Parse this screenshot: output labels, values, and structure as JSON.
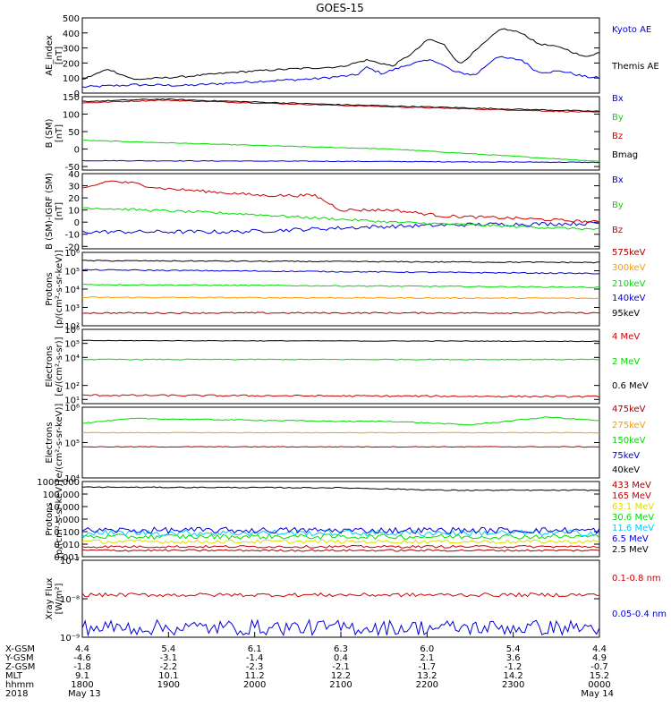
{
  "title": "GOES-15",
  "colors": {
    "black": "#000000",
    "blue": "#0000dd",
    "green": "#00dd00",
    "red": "#cc0000",
    "orange": "#ff9900",
    "cyan": "#00ccff",
    "yellow": "#dddd00",
    "darkred": "#aa0000",
    "axis": "#000000"
  },
  "chart_data": [
    {
      "type": "line",
      "id": "ae",
      "ylabel": [
        "AE_index",
        "[nT]"
      ],
      "ylim": [
        0,
        500
      ],
      "yscale": "linear",
      "ticks": [
        {
          "v": 0,
          "l": "0"
        },
        {
          "v": 100,
          "l": "100"
        },
        {
          "v": 200,
          "l": "200"
        },
        {
          "v": 300,
          "l": "300"
        },
        {
          "v": 400,
          "l": "400"
        },
        {
          "v": 500,
          "l": "500"
        }
      ],
      "series": [
        {
          "name": "Kyoto AE",
          "color": "blue",
          "noise": 8,
          "knots": [
            [
              0,
              40
            ],
            [
              0.1,
              55
            ],
            [
              0.2,
              50
            ],
            [
              0.35,
              80
            ],
            [
              0.45,
              95
            ],
            [
              0.53,
              120
            ],
            [
              0.55,
              170
            ],
            [
              0.58,
              130
            ],
            [
              0.64,
              200
            ],
            [
              0.68,
              220
            ],
            [
              0.72,
              140
            ],
            [
              0.76,
              120
            ],
            [
              0.8,
              240
            ],
            [
              0.85,
              220
            ],
            [
              0.88,
              140
            ],
            [
              0.93,
              145
            ],
            [
              0.97,
              110
            ],
            [
              1,
              100
            ]
          ]
        },
        {
          "name": "Themis AE",
          "color": "black",
          "noise": 6,
          "knots": [
            [
              0,
              90
            ],
            [
              0.05,
              160
            ],
            [
              0.1,
              90
            ],
            [
              0.2,
              110
            ],
            [
              0.3,
              140
            ],
            [
              0.4,
              160
            ],
            [
              0.5,
              175
            ],
            [
              0.55,
              220
            ],
            [
              0.6,
              180
            ],
            [
              0.64,
              270
            ],
            [
              0.67,
              360
            ],
            [
              0.7,
              320
            ],
            [
              0.73,
              190
            ],
            [
              0.78,
              340
            ],
            [
              0.81,
              430
            ],
            [
              0.85,
              400
            ],
            [
              0.88,
              330
            ],
            [
              0.93,
              300
            ],
            [
              0.97,
              240
            ],
            [
              1,
              270
            ]
          ]
        }
      ]
    },
    {
      "type": "line",
      "id": "bsm",
      "ylabel": [
        "B (SM)",
        "[nT]"
      ],
      "ylim": [
        -60,
        150
      ],
      "yscale": "linear",
      "ticks": [
        {
          "v": -50,
          "l": "-50"
        },
        {
          "v": 0,
          "l": "0"
        },
        {
          "v": 50,
          "l": "50"
        },
        {
          "v": 100,
          "l": "100"
        },
        {
          "v": 150,
          "l": "150"
        }
      ],
      "series": [
        {
          "name": "Bx",
          "color": "blue",
          "noise": 1,
          "knots": [
            [
              0,
              -33
            ],
            [
              0.5,
              -35
            ],
            [
              1,
              -38
            ]
          ]
        },
        {
          "name": "By",
          "color": "green",
          "noise": 1,
          "knots": [
            [
              0,
              25
            ],
            [
              0.3,
              12
            ],
            [
              0.6,
              0
            ],
            [
              1,
              -35
            ]
          ]
        },
        {
          "name": "Bz",
          "color": "red",
          "noise": 1.5,
          "knots": [
            [
              0,
              132
            ],
            [
              0.15,
              140
            ],
            [
              0.5,
              125
            ],
            [
              1,
              105
            ]
          ]
        },
        {
          "name": "Bmag",
          "color": "black",
          "noise": 1.5,
          "knots": [
            [
              0,
              136
            ],
            [
              0.15,
              143
            ],
            [
              0.5,
              127
            ],
            [
              1,
              108
            ]
          ]
        }
      ]
    },
    {
      "type": "line",
      "id": "bigrf",
      "ylabel": [
        "B (SM)-IGRF (SM)",
        "[nT]"
      ],
      "ylim": [
        -22,
        40
      ],
      "yscale": "linear",
      "ticks": [
        {
          "v": -20,
          "l": "-20"
        },
        {
          "v": -10,
          "l": "-10"
        },
        {
          "v": 0,
          "l": "0"
        },
        {
          "v": 10,
          "l": "10"
        },
        {
          "v": 20,
          "l": "20"
        },
        {
          "v": 30,
          "l": "30"
        },
        {
          "v": 40,
          "l": "40"
        }
      ],
      "series": [
        {
          "name": "Bx",
          "color": "blue",
          "noise": 1.6,
          "knots": [
            [
              0,
              -8
            ],
            [
              0.3,
              -8
            ],
            [
              0.55,
              -4
            ],
            [
              0.75,
              -2
            ],
            [
              1,
              -1
            ]
          ]
        },
        {
          "name": "By",
          "color": "green",
          "noise": 1,
          "knots": [
            [
              0,
              12
            ],
            [
              0.3,
              7
            ],
            [
              0.6,
              0
            ],
            [
              1,
              -6
            ]
          ]
        },
        {
          "name": "Bz",
          "color": "red",
          "noise": 1.2,
          "knots": [
            [
              0,
              27
            ],
            [
              0.05,
              34
            ],
            [
              0.1,
              32
            ],
            [
              0.15,
              28
            ],
            [
              0.25,
              25
            ],
            [
              0.35,
              22
            ],
            [
              0.45,
              22
            ],
            [
              0.5,
              10
            ],
            [
              0.6,
              10
            ],
            [
              0.7,
              5
            ],
            [
              0.85,
              3
            ],
            [
              1,
              0
            ]
          ]
        }
      ]
    },
    {
      "type": "line",
      "id": "protons",
      "ylabel": [
        "Protons",
        "[p/(cm²-s-sr-keV)]"
      ],
      "ylim": [
        2,
        6
      ],
      "yscale": "log",
      "ticks": [
        {
          "v": 2,
          "l": "10²"
        },
        {
          "v": 3,
          "l": "10³"
        },
        {
          "v": 4,
          "l": "10⁴"
        },
        {
          "v": 5,
          "l": "10⁵"
        },
        {
          "v": 6,
          "l": "10⁶"
        }
      ],
      "series": [
        {
          "name": "575keV",
          "color": "darkred",
          "noise": 0.04,
          "knots": [
            [
              0,
              2.7
            ],
            [
              1,
              2.7
            ]
          ]
        },
        {
          "name": "300keV",
          "color": "orange",
          "noise": 0.03,
          "knots": [
            [
              0,
              3.55
            ],
            [
              1,
              3.5
            ]
          ]
        },
        {
          "name": "210keV",
          "color": "green",
          "noise": 0.03,
          "knots": [
            [
              0,
              4.25
            ],
            [
              1,
              4.1
            ]
          ]
        },
        {
          "name": "140keV",
          "color": "blue",
          "noise": 0.03,
          "knots": [
            [
              0,
              5.05
            ],
            [
              1,
              4.85
            ]
          ]
        },
        {
          "name": "95keV",
          "color": "black",
          "noise": 0.03,
          "knots": [
            [
              0,
              5.55
            ],
            [
              1,
              5.45
            ]
          ]
        }
      ]
    },
    {
      "type": "line",
      "id": "electrons1",
      "ylabel": [
        "Electrons",
        "[e/(cm²-s-sr)]"
      ],
      "ylim": [
        0.7,
        6
      ],
      "yscale": "log",
      "ticks": [
        {
          "v": 1,
          "l": "10¹"
        },
        {
          "v": 2,
          "l": "10²"
        },
        {
          "v": 4,
          "l": "10⁴"
        },
        {
          "v": 5,
          "l": "10⁵"
        },
        {
          "v": 6,
          "l": "10⁶"
        }
      ],
      "series": [
        {
          "name": "4 MeV",
          "color": "red",
          "noise": 0.06,
          "knots": [
            [
              0,
              1.3
            ],
            [
              1,
              1.2
            ]
          ]
        },
        {
          "name": "2 MeV",
          "color": "green",
          "noise": 0.03,
          "knots": [
            [
              0,
              3.85
            ],
            [
              1,
              3.85
            ]
          ]
        },
        {
          "name": "0.6 MeV",
          "color": "black",
          "noise": 0.02,
          "knots": [
            [
              0,
              5.2
            ],
            [
              1,
              5.15
            ]
          ]
        }
      ]
    },
    {
      "type": "line",
      "id": "electrons2",
      "ylabel": [
        "Electrons",
        "[e/(cm²-s-sr-keV)]"
      ],
      "ylim": [
        4,
        6
      ],
      "yscale": "log",
      "ticks": [
        {
          "v": 4,
          "l": "10⁴"
        },
        {
          "v": 5,
          "l": "10⁵"
        },
        {
          "v": 6,
          "l": "10⁶"
        }
      ],
      "series": [
        {
          "name": "475keV",
          "color": "darkred",
          "noise": 0.01,
          "knots": [
            [
              0,
              4.88
            ],
            [
              1,
              4.88
            ]
          ]
        },
        {
          "name": "275keV",
          "color": "orange",
          "noise": 0.01,
          "knots": [
            [
              0,
              5.28
            ],
            [
              1,
              5.28
            ]
          ]
        },
        {
          "name": "150keV",
          "color": "green",
          "noise": 0.015,
          "knots": [
            [
              0,
              5.55
            ],
            [
              0.1,
              5.68
            ],
            [
              0.5,
              5.6
            ],
            [
              0.6,
              5.6
            ],
            [
              0.75,
              5.5
            ],
            [
              0.9,
              5.72
            ],
            [
              1,
              5.62
            ]
          ]
        },
        {
          "name": "75keV",
          "color": "blue",
          "noise": 0,
          "knots": [
            [
              0,
              6.3
            ],
            [
              1,
              6.3
            ]
          ]
        },
        {
          "name": "40keV",
          "color": "black",
          "noise": 0,
          "knots": [
            [
              0,
              6.4
            ],
            [
              1,
              6.4
            ]
          ]
        }
      ]
    },
    {
      "type": "line",
      "id": "protons2",
      "ylabel": [
        "Protons",
        "[p/(cm²-s-sr-keV)]"
      ],
      "ylim": [
        -3,
        3
      ],
      "yscale": "log",
      "ticks": [
        {
          "v": -3,
          "l": "0.001"
        },
        {
          "v": -2,
          "l": "0.010"
        },
        {
          "v": -1,
          "l": "0.100"
        },
        {
          "v": 0,
          "l": "1.000"
        },
        {
          "v": 1,
          "l": "10.000"
        },
        {
          "v": 2,
          "l": "100.000"
        },
        {
          "v": 3,
          "l": "1000.000"
        }
      ],
      "series": [
        {
          "name": "433 MeV",
          "color": "darkred",
          "noise": 0.08,
          "knots": [
            [
              0,
              -2.5
            ],
            [
              1,
              -2.5
            ]
          ]
        },
        {
          "name": "165 MeV",
          "color": "red",
          "noise": 0.1,
          "knots": [
            [
              0,
              -2.2
            ],
            [
              1,
              -2.2
            ]
          ]
        },
        {
          "name": "63.1 MeV",
          "color": "yellow",
          "noise": 0.15,
          "knots": [
            [
              0,
              -1.8
            ],
            [
              1,
              -1.8
            ]
          ]
        },
        {
          "name": "30.6 MeV",
          "color": "green",
          "noise": 0.2,
          "knots": [
            [
              0,
              -1.4
            ],
            [
              1,
              -1.4
            ]
          ]
        },
        {
          "name": "11.6 MeV",
          "color": "cyan",
          "noise": 0.25,
          "knots": [
            [
              0,
              -1.1
            ],
            [
              1,
              -1.1
            ]
          ]
        },
        {
          "name": "6.5 MeV",
          "color": "blue",
          "noise": 0.25,
          "knots": [
            [
              0,
              -0.9
            ],
            [
              1,
              -0.9
            ]
          ]
        },
        {
          "name": "2.5 MeV",
          "color": "black",
          "noise": 0.04,
          "knots": [
            [
              0,
              2.55
            ],
            [
              0.5,
              2.5
            ],
            [
              0.7,
              2.3
            ],
            [
              1,
              2.3
            ]
          ]
        }
      ]
    },
    {
      "type": "line",
      "id": "xray",
      "ylabel": [
        "Xray Flux",
        "[W/m²]"
      ],
      "ylim": [
        -9,
        -7
      ],
      "yscale": "log",
      "ticks": [
        {
          "v": -9,
          "l": "10⁻⁹"
        },
        {
          "v": -8,
          "l": "10⁻⁸"
        },
        {
          "v": -7,
          "l": "10⁻⁷"
        }
      ],
      "series": [
        {
          "name": "0.1-0.8 nm",
          "color": "red",
          "noise": 0.05,
          "knots": [
            [
              0,
              -7.9
            ],
            [
              1,
              -7.9
            ]
          ]
        },
        {
          "name": "0.05-0.4 nm",
          "color": "blue",
          "noise": 0.2,
          "knots": [
            [
              0,
              -8.75
            ],
            [
              1,
              -8.75
            ]
          ]
        }
      ]
    }
  ],
  "xaxis": {
    "row_labels": [
      "X-GSM",
      "Y-GSM",
      "Z-GSM",
      "MLT",
      "hhmm",
      "2018"
    ],
    "ticks": [
      {
        "col": [
          "4.4",
          "-4.6",
          "-1.8",
          "9.1",
          "1800",
          "May 13"
        ]
      },
      {
        "col": [
          "5.4",
          "-3.1",
          "-2.2",
          "10.1",
          "1900",
          ""
        ]
      },
      {
        "col": [
          "6.1",
          "-1.4",
          "-2.3",
          "11.2",
          "2000",
          ""
        ]
      },
      {
        "col": [
          "6.3",
          "0.4",
          "-2.1",
          "12.2",
          "2100",
          ""
        ]
      },
      {
        "col": [
          "6.0",
          "2.1",
          "-1.7",
          "13.2",
          "2200",
          ""
        ]
      },
      {
        "col": [
          "5.4",
          "3.6",
          "-1.2",
          "14.2",
          "2300",
          ""
        ]
      },
      {
        "col": [
          "4.4",
          "4.9",
          "-0.7",
          "15.2",
          "0000",
          "May 14"
        ]
      }
    ]
  }
}
